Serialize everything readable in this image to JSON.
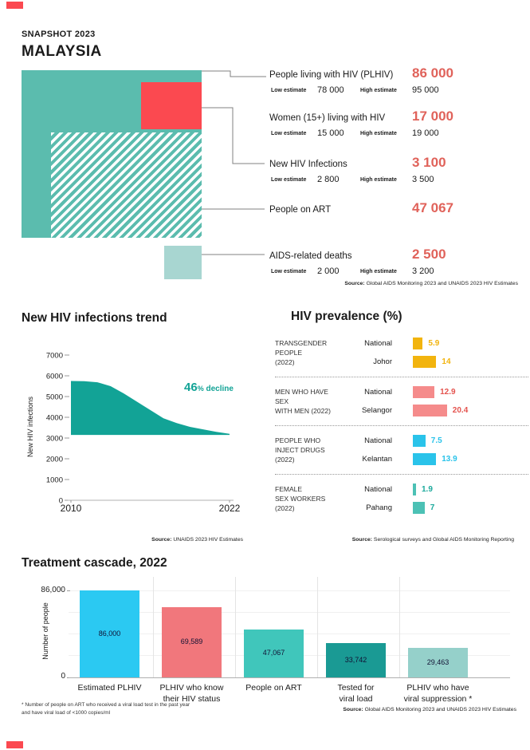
{
  "header": {
    "snapshot_label": "SNAPSHOT 2023",
    "country": "MALAYSIA"
  },
  "corner_mark_color": "#fb4950",
  "proportional_squares": {
    "blocks": [
      {
        "name": "plhiv",
        "connects_to": "People living with HIV (PLHIV)",
        "color": "#5bbcae",
        "style": "solid"
      },
      {
        "name": "new-hiv-infections",
        "connects_to": "New HIV Infections",
        "color": "#fb4950",
        "style": "solid"
      },
      {
        "name": "people-on-art",
        "connects_to": "People on ART",
        "color": "#5bbcae",
        "style": "hatched",
        "hatch_color": "#ffffff"
      },
      {
        "name": "aids-related-deaths",
        "connects_to": "AIDS-related deaths",
        "color": "#a8d6d1",
        "style": "solid"
      }
    ],
    "connector_color": "#808080"
  },
  "key_stats": {
    "est_labels": {
      "low": "Low estimate",
      "high": "High estimate"
    },
    "value_color": "#e0625a",
    "items": [
      {
        "label": "People living with HIV (PLHIV)",
        "value": "86 000",
        "low": "78 000",
        "high": "95 000"
      },
      {
        "label": "Women (15+) living with HIV",
        "value": "17 000",
        "low": "15 000",
        "high": "19 000"
      },
      {
        "label": "New HIV Infections",
        "value": "3 100",
        "low": "2 800",
        "high": "3 500"
      },
      {
        "label": "People on ART",
        "value": "47 067"
      },
      {
        "label": "AIDS-related deaths",
        "value": "2 500",
        "low": "2 000",
        "high": "3 200"
      }
    ],
    "source": "Source: Global AIDS Monitoring 2023 and UNAIDS 2023 HIV Estimates"
  },
  "chart_data": [
    {
      "id": "trend",
      "type": "area",
      "title": "New HIV infections trend",
      "ylabel": "New HIV infections",
      "x": [
        2010,
        2011,
        2012,
        2013,
        2014,
        2015,
        2016,
        2017,
        2018,
        2019,
        2020,
        2021,
        2022
      ],
      "upper": [
        5750,
        5740,
        5690,
        5500,
        5150,
        4750,
        4350,
        3950,
        3720,
        3540,
        3420,
        3300,
        3200
      ],
      "baseline": 3150,
      "ylim": [
        0,
        7000
      ],
      "yticks": [
        0,
        1000,
        2000,
        3000,
        4000,
        5000,
        6000,
        7000
      ],
      "xticks": [
        2010,
        2022
      ],
      "fill_color": "#12a396",
      "annotation": {
        "value": "46",
        "percent": "%",
        "text": " decline",
        "color": "#12a396"
      },
      "source": "Source: UNAIDS 2023 HIV Estimates"
    },
    {
      "id": "prevalence",
      "type": "bar",
      "title": "HIV prevalence (%)",
      "unit": "%",
      "groups": [
        {
          "label": "TRANSGENDER PEOPLE\n(2022)",
          "bar_color": "#f2b40e",
          "value_color": "#f2b40e",
          "rows": [
            {
              "name": "National",
              "value": 5.9,
              "display": "5.9"
            },
            {
              "name": "Johor",
              "value": 14,
              "display": "14"
            }
          ]
        },
        {
          "label": "MEN WHO HAVE SEX\nWITH MEN (2022)",
          "bar_color": "#f58b8b",
          "value_color": "#e4534e",
          "rows": [
            {
              "name": "National",
              "value": 12.9,
              "display": "12.9"
            },
            {
              "name": "Selangor",
              "value": 20.4,
              "display": "20.4"
            }
          ]
        },
        {
          "label": "PEOPLE WHO\nINJECT DRUGS (2022)",
          "bar_color": "#2ac3ea",
          "value_color": "#2ac3ea",
          "rows": [
            {
              "name": "National",
              "value": 7.5,
              "display": "7.5"
            },
            {
              "name": "Kelantan",
              "value": 13.9,
              "display": "13.9"
            }
          ]
        },
        {
          "label": "FEMALE\nSEX WORKERS\n(2022)",
          "bar_color": "#4cc1b5",
          "value_color": "#1ba99c",
          "rows": [
            {
              "name": "National",
              "value": 1.9,
              "display": "1.9"
            },
            {
              "name": "Pahang",
              "value": 7,
              "display": "7"
            }
          ]
        }
      ],
      "source": "Source: Serological surveys and Global AIDS Monitoring Reporting"
    },
    {
      "id": "cascade",
      "type": "bar",
      "title": "Treatment cascade, 2022",
      "ylabel": "Number of people",
      "ylim": [
        0,
        86000
      ],
      "ytick_labels": [
        "86,000",
        "0"
      ],
      "categories": [
        "Estimated PLHIV",
        "PLHIV who know\ntheir HIV status",
        "People on ART",
        "Tested for\nviral load",
        "PLHIV who have\nviral suppression *"
      ],
      "values": [
        86000,
        69589,
        47067,
        33742,
        29463
      ],
      "value_labels": [
        "86,000",
        "69,589",
        "47,067",
        "33,742",
        "29,463"
      ],
      "colors": [
        "#2bc9f2",
        "#f1777c",
        "#40c6bb",
        "#1a9a94",
        "#95d0ca"
      ],
      "grid": true,
      "footnote": "* Number of people on ART who received a viral load test in the past year\nand have viral load of <1000 copies/ml",
      "source": "Source: Global AIDS Monitoring 2023 and UNAIDS 2023 HIV Estimates"
    }
  ]
}
